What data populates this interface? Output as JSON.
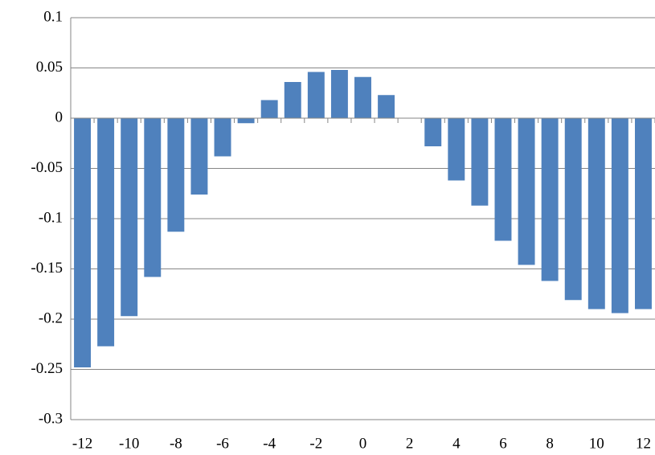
{
  "chart_data": {
    "type": "bar",
    "categories": [
      -12,
      null,
      -10,
      null,
      -8,
      null,
      -6,
      null,
      -4,
      null,
      -2,
      null,
      0,
      null,
      2,
      null,
      4,
      null,
      6,
      null,
      8,
      null,
      10,
      null,
      12
    ],
    "values": [
      -0.248,
      -0.227,
      -0.197,
      -0.158,
      -0.113,
      -0.076,
      -0.038,
      -0.005,
      0.018,
      0.036,
      0.046,
      0.048,
      0.041,
      0.023,
      0,
      -0.028,
      -0.062,
      -0.087,
      -0.122,
      -0.146,
      -0.162,
      -0.181,
      -0.19,
      -0.194,
      -0.19
    ],
    "color": "#4f81bd",
    "ylim": [
      -0.3,
      0.1
    ],
    "yticks": [
      0.1,
      0.05,
      0,
      -0.05,
      -0.1,
      -0.15,
      -0.2,
      -0.25,
      -0.3
    ],
    "grid": true
  }
}
